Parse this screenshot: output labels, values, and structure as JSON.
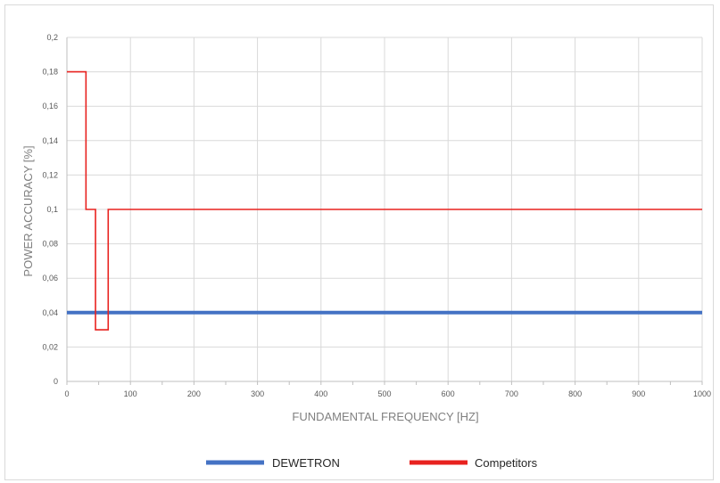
{
  "chart_data": {
    "type": "line",
    "title": "",
    "xlabel": "FUNDAMENTAL FREQUENCY [HZ]",
    "ylabel": "POWER ACCURACY [%]",
    "xlim": [
      0,
      1000
    ],
    "ylim": [
      0,
      0.2
    ],
    "x_ticks": [
      "0",
      "100",
      "200",
      "300",
      "400",
      "500",
      "600",
      "700",
      "800",
      "900",
      "1000"
    ],
    "y_ticks": [
      "0",
      "0,02",
      "0,04",
      "0,06",
      "0,08",
      "0,1",
      "0,12",
      "0,14",
      "0,16",
      "0,18",
      "0,2"
    ],
    "x_tick_values": [
      0,
      100,
      200,
      300,
      400,
      500,
      600,
      700,
      800,
      900,
      1000
    ],
    "y_tick_values": [
      0,
      0.02,
      0.04,
      0.06,
      0.08,
      0.1,
      0.12,
      0.14,
      0.16,
      0.18,
      0.2
    ],
    "grid": true,
    "legend_position": "bottom",
    "series": [
      {
        "name": "DEWETRON",
        "color": "#4472c4",
        "x": [
          0,
          1000
        ],
        "y": [
          0.04,
          0.04
        ]
      },
      {
        "name": "Competitors",
        "color": "#e8221f",
        "x": [
          0,
          30,
          30,
          45,
          45,
          65,
          65,
          1000
        ],
        "y": [
          0.18,
          0.18,
          0.1,
          0.1,
          0.03,
          0.03,
          0.1,
          0.1
        ]
      }
    ]
  }
}
